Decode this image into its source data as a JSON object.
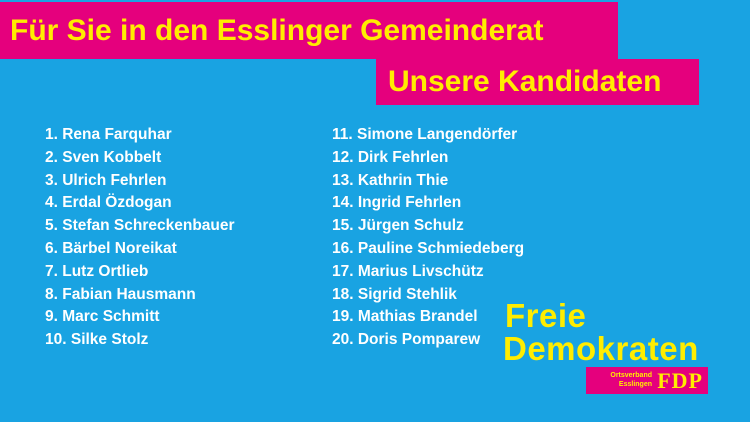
{
  "header": {
    "title": "Für Sie in den Esslinger Gemeinderat",
    "subtitle": "Unsere Kandidaten"
  },
  "candidates": {
    "left": [
      "1. Rena Farquhar",
      "2. Sven Kobbelt",
      "3. Ulrich Fehrlen",
      "4. Erdal Özdogan",
      "5. Stefan Schreckenbauer",
      "6. Bärbel Noreikat",
      "7. Lutz Ortlieb",
      "8. Fabian Hausmann",
      "9. Marc Schmitt",
      "10. Silke Stolz"
    ],
    "right": [
      "11. Simone Langendörfer",
      "12. Dirk Fehrlen",
      "13. Kathrin Thie",
      "14. Ingrid Fehrlen",
      "15. Jürgen Schulz",
      "16. Pauline Schmiedeberg",
      "17. Marius Livschütz",
      "18. Sigrid Stehlik",
      "19. Mathias Brandel",
      "20. Doris Pomparew"
    ]
  },
  "logo": {
    "line1": "Freie",
    "line2": "Demokraten",
    "ortsverband_line1": "Ortsverband",
    "ortsverband_line2": "Esslingen",
    "party": "FDP"
  },
  "colors": {
    "background": "#19a3e2",
    "magenta": "#e5007d",
    "yellow": "#ffed00"
  }
}
